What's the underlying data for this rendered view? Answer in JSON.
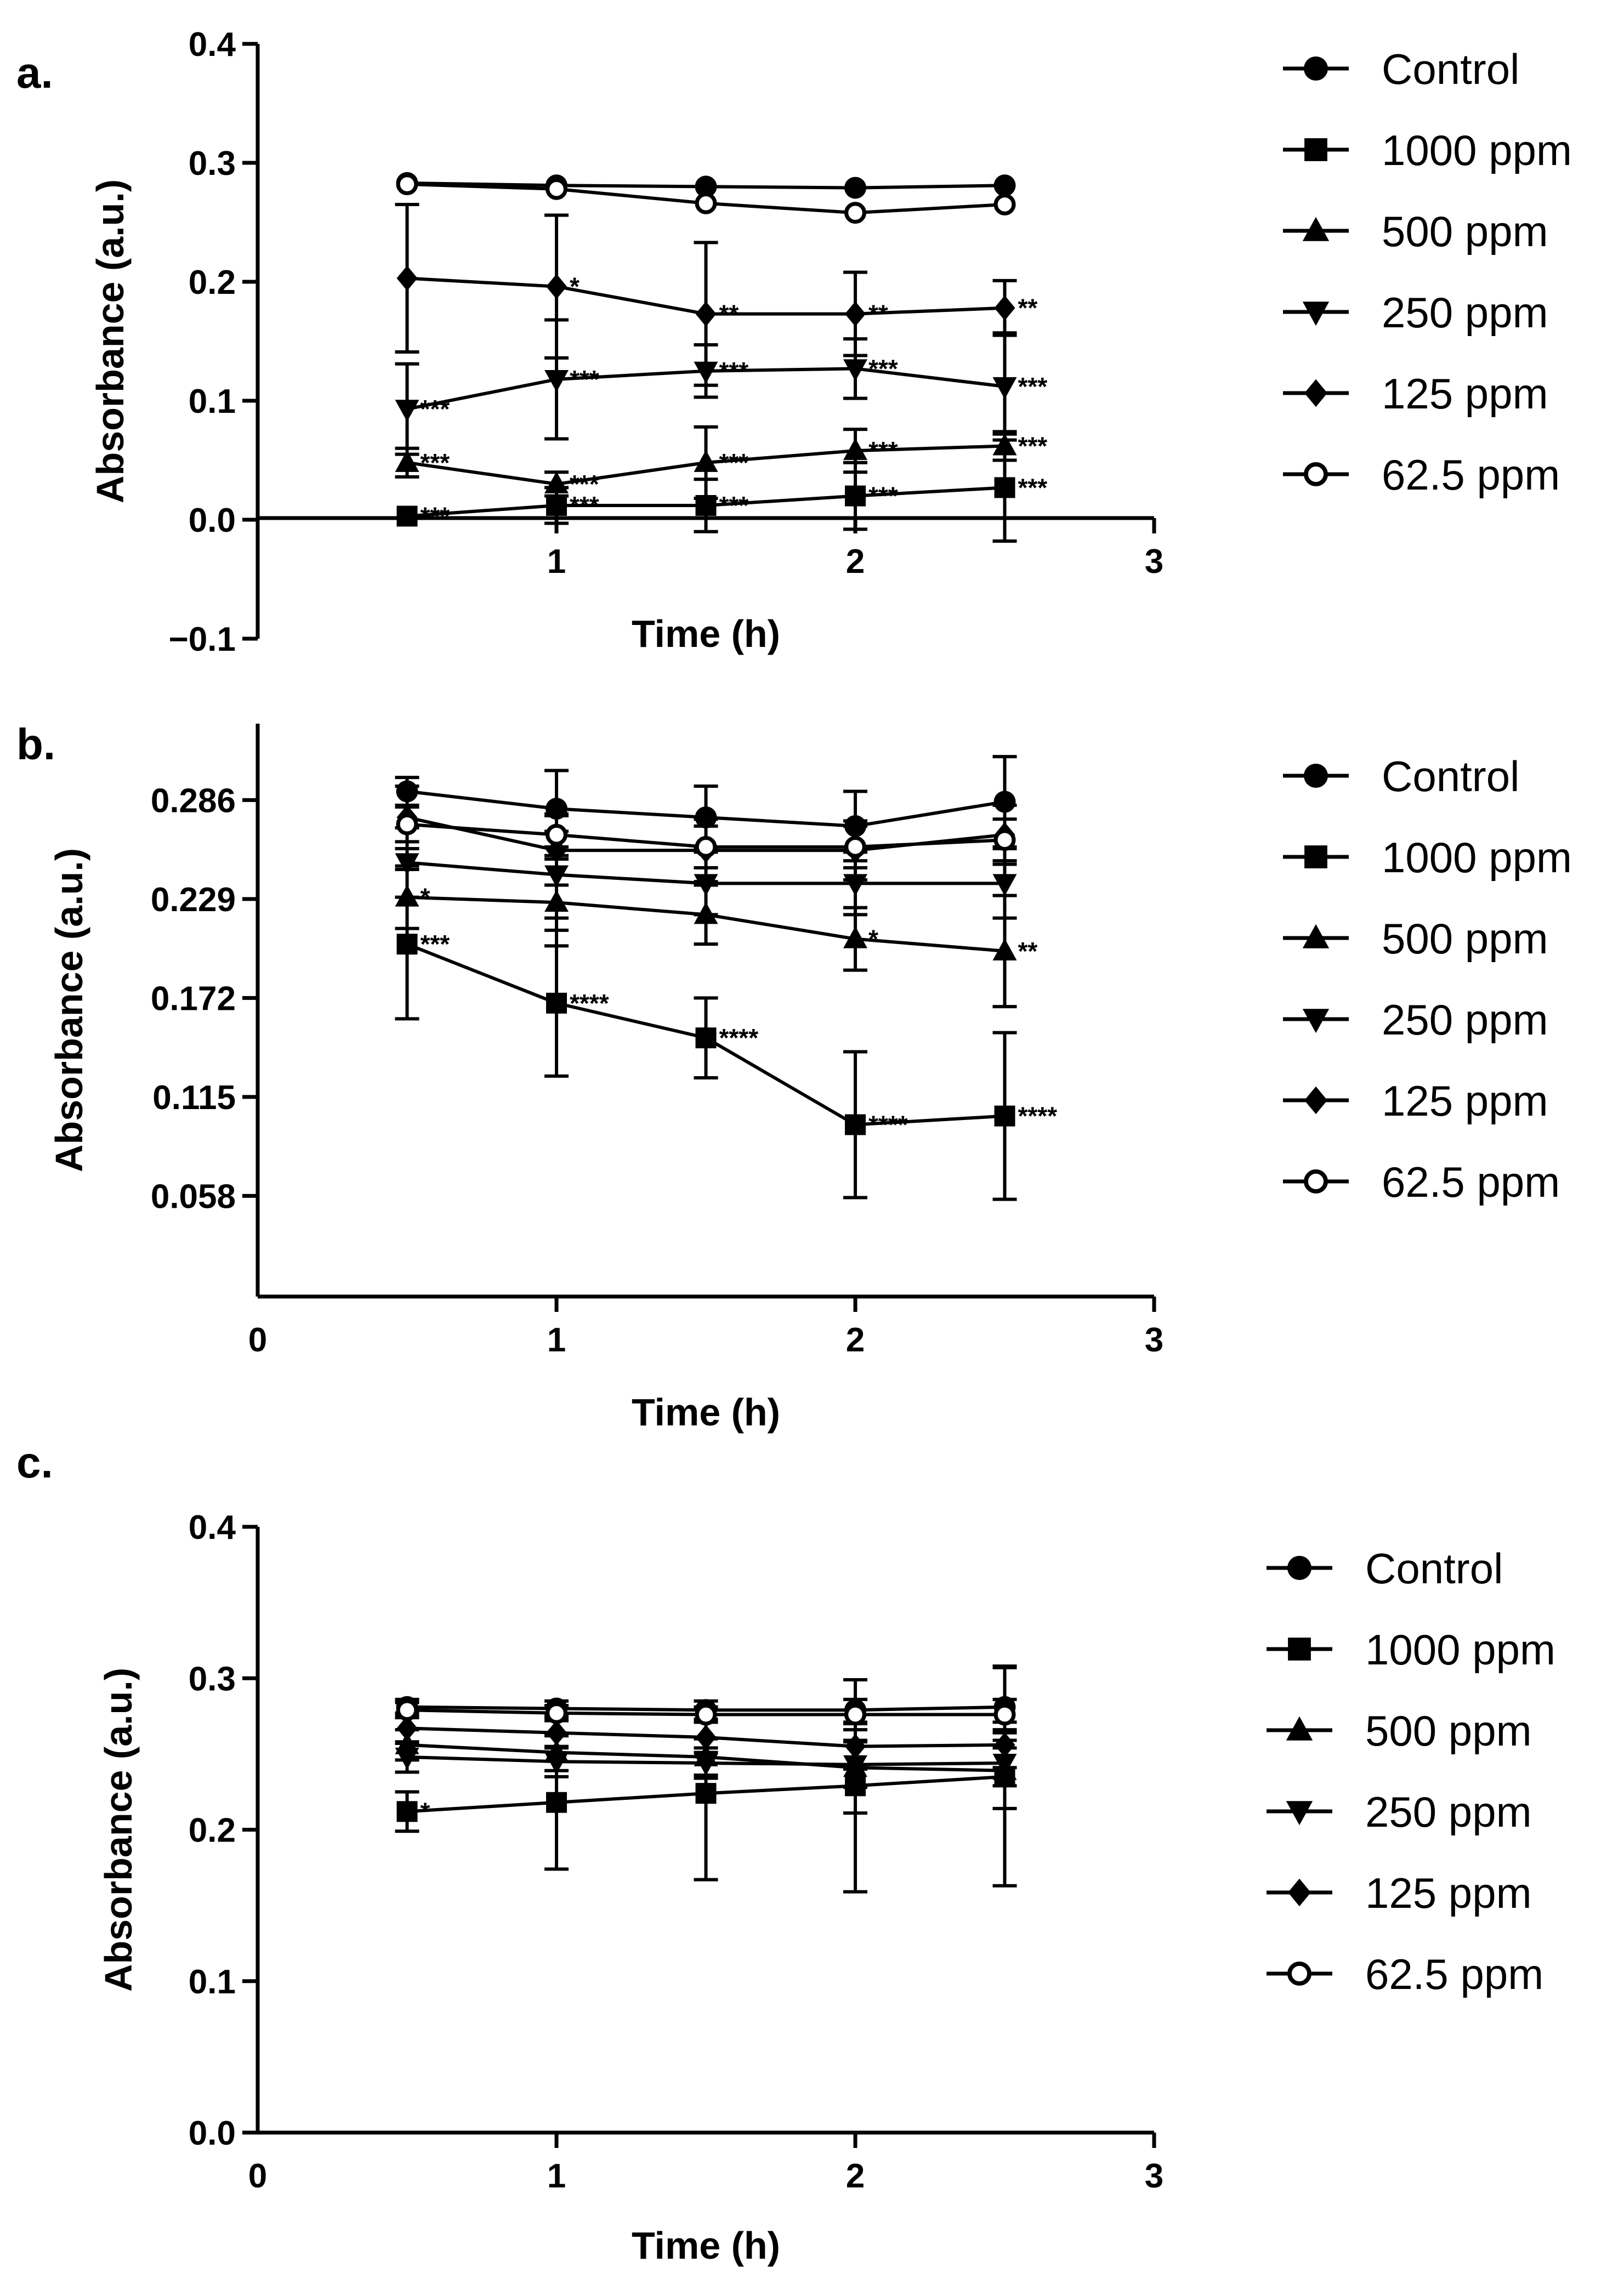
{
  "chart_data": [
    {
      "type": "line",
      "panel_label": "a.",
      "xlabel": "Time (h)",
      "ylabel": "Absorbance (a.u.)",
      "xlim": [
        0,
        3
      ],
      "ylim": [
        -0.1,
        0.4
      ],
      "xticks": [
        {
          "value": 1,
          "label": "1"
        },
        {
          "value": 2,
          "label": "2"
        },
        {
          "value": 3,
          "label": "3"
        }
      ],
      "yticks": [
        {
          "value": -0.1,
          "label": "−0.1"
        },
        {
          "value": 0.0,
          "label": "0.0"
        },
        {
          "value": 0.1,
          "label": "0.1"
        },
        {
          "value": 0.2,
          "label": "0.2"
        },
        {
          "value": 0.3,
          "label": "0.3"
        },
        {
          "value": 0.4,
          "label": "0.4"
        }
      ],
      "x": [
        0.5,
        1.0,
        1.5,
        2.0,
        2.5
      ],
      "series": [
        {
          "name": "Control",
          "marker": "circle",
          "values": [
            0.283,
            0.281,
            0.28,
            0.279,
            0.281
          ],
          "errors": [
            0,
            0,
            0,
            0,
            0
          ],
          "stars": [
            "",
            "",
            "",
            "",
            ""
          ]
        },
        {
          "name": "1000 ppm",
          "marker": "square",
          "values": [
            0.003,
            0.012,
            0.012,
            0.02,
            0.027
          ],
          "errors": [
            0,
            0.015,
            0.022,
            0.028,
            0.045
          ],
          "stars": [
            "***",
            "***",
            "***",
            "***",
            "***"
          ]
        },
        {
          "name": "500 ppm",
          "marker": "triangle-up",
          "values": [
            0.048,
            0.03,
            0.048,
            0.058,
            0.062
          ],
          "errors": [
            0.012,
            0.01,
            0.03,
            0.018,
            0.012
          ],
          "stars": [
            "***",
            "***",
            "***",
            "***",
            "***"
          ]
        },
        {
          "name": "250 ppm",
          "marker": "triangle-down",
          "values": [
            0.093,
            0.118,
            0.125,
            0.127,
            0.112
          ],
          "errors": [
            0.038,
            0.05,
            0.022,
            0.025,
            0.045
          ],
          "stars": [
            "***",
            "***",
            "***",
            "***",
            "***"
          ]
        },
        {
          "name": "125 ppm",
          "marker": "diamond",
          "values": [
            0.203,
            0.196,
            0.173,
            0.173,
            0.178
          ],
          "errors": [
            0.062,
            0.06,
            0.06,
            0.035,
            0.023
          ],
          "stars": [
            "",
            "*",
            "**",
            "**",
            "**"
          ]
        },
        {
          "name": "62.5 ppm",
          "marker": "circle-open",
          "values": [
            0.282,
            0.278,
            0.266,
            0.258,
            0.265
          ],
          "errors": [
            0,
            0,
            0,
            0,
            0
          ],
          "stars": [
            "",
            "",
            "",
            "",
            ""
          ]
        }
      ]
    },
    {
      "type": "line",
      "panel_label": "b.",
      "xlabel": "Time (h)",
      "ylabel": "Absorbance (a.u.)",
      "xlim": [
        0,
        3
      ],
      "ylim": [
        0,
        0.33
      ],
      "xticks": [
        {
          "value": 0,
          "label": "0"
        },
        {
          "value": 1,
          "label": "1"
        },
        {
          "value": 2,
          "label": "2"
        },
        {
          "value": 3,
          "label": "3"
        }
      ],
      "yticks": [
        {
          "value": 0.058,
          "label": "0.058"
        },
        {
          "value": 0.115,
          "label": "0.115"
        },
        {
          "value": 0.172,
          "label": "0.172"
        },
        {
          "value": 0.229,
          "label": "0.229"
        },
        {
          "value": 0.286,
          "label": "0.286"
        }
      ],
      "x": [
        0.5,
        1.0,
        1.5,
        2.0,
        2.5
      ],
      "series": [
        {
          "name": "Control",
          "marker": "circle",
          "values": [
            0.291,
            0.281,
            0.276,
            0.271,
            0.285
          ],
          "errors": [
            0.008,
            0.022,
            0.018,
            0.02,
            0.026
          ],
          "stars": [
            "",
            "",
            "",
            "",
            ""
          ]
        },
        {
          "name": "1000 ppm",
          "marker": "square",
          "values": [
            0.203,
            0.169,
            0.149,
            0.099,
            0.104
          ],
          "errors": [
            0.043,
            0.042,
            0.023,
            0.042,
            0.048
          ],
          "stars": [
            "***",
            "****",
            "****",
            "****",
            "****"
          ]
        },
        {
          "name": "500 ppm",
          "marker": "triangle-up",
          "values": [
            0.23,
            0.227,
            0.22,
            0.206,
            0.199
          ],
          "errors": [
            0.018,
            0.025,
            0.017,
            0.018,
            0.032
          ],
          "stars": [
            "*",
            "",
            "",
            "*",
            "**"
          ]
        },
        {
          "name": "250 ppm",
          "marker": "triangle-down",
          "values": [
            0.25,
            0.243,
            0.238,
            0.238,
            0.238
          ],
          "errors": [
            0.02,
            0.025,
            0.018,
            0.018,
            0.02
          ],
          "stars": [
            "",
            "",
            "",
            "",
            ""
          ]
        },
        {
          "name": "125 ppm",
          "marker": "diamond",
          "values": [
            0.276,
            0.257,
            0.257,
            0.257,
            0.266
          ],
          "errors": [
            0.018,
            0.02,
            0.018,
            0.017,
            0.017
          ],
          "stars": [
            "",
            "",
            "",
            "",
            ""
          ]
        },
        {
          "name": "62.5 ppm",
          "marker": "circle-open",
          "values": [
            0.272,
            0.266,
            0.259,
            0.259,
            0.263
          ],
          "errors": [
            0.01,
            0.012,
            0.012,
            0.012,
            0.012
          ],
          "stars": [
            "",
            "",
            "",
            "",
            ""
          ]
        }
      ]
    },
    {
      "type": "line",
      "panel_label": "c.",
      "xlabel": "Time (h)",
      "ylabel": "Absorbance (a.u.)",
      "xlim": [
        0,
        3
      ],
      "ylim": [
        0,
        0.4
      ],
      "xticks": [
        {
          "value": 0,
          "label": "0"
        },
        {
          "value": 1,
          "label": "1"
        },
        {
          "value": 2,
          "label": "2"
        },
        {
          "value": 3,
          "label": "3"
        }
      ],
      "yticks": [
        {
          "value": 0.0,
          "label": "0.0"
        },
        {
          "value": 0.1,
          "label": "0.1"
        },
        {
          "value": 0.2,
          "label": "0.2"
        },
        {
          "value": 0.3,
          "label": "0.3"
        },
        {
          "value": 0.4,
          "label": "0.4"
        }
      ],
      "x": [
        0.5,
        1.0,
        1.5,
        2.0,
        2.5
      ],
      "series": [
        {
          "name": "Control",
          "marker": "circle",
          "values": [
            0.281,
            0.28,
            0.279,
            0.279,
            0.281
          ],
          "errors": [
            0.005,
            0.005,
            0.006,
            0.02,
            0.027
          ],
          "stars": [
            "",
            "",
            "",
            "",
            ""
          ]
        },
        {
          "name": "1000 ppm",
          "marker": "square",
          "values": [
            0.212,
            0.218,
            0.224,
            0.229,
            0.235
          ],
          "errors": [
            0.013,
            0.044,
            0.057,
            0.07,
            0.072
          ],
          "stars": [
            "*",
            "",
            "",
            "",
            ""
          ]
        },
        {
          "name": "500 ppm",
          "marker": "triangle-up",
          "values": [
            0.256,
            0.251,
            0.248,
            0.241,
            0.239
          ],
          "errors": [
            0.01,
            0.012,
            0.012,
            0.03,
            0.025
          ],
          "stars": [
            "",
            "",
            "",
            "",
            ""
          ]
        },
        {
          "name": "250 ppm",
          "marker": "triangle-down",
          "values": [
            0.248,
            0.245,
            0.244,
            0.243,
            0.244
          ],
          "errors": [
            0.01,
            0.01,
            0.01,
            0.015,
            0.015
          ],
          "stars": [
            "",
            "",
            "",
            "",
            ""
          ]
        },
        {
          "name": "125 ppm",
          "marker": "diamond",
          "values": [
            0.267,
            0.264,
            0.261,
            0.255,
            0.256
          ],
          "errors": [
            0.01,
            0.01,
            0.01,
            0.015,
            0.015
          ],
          "stars": [
            "",
            "",
            "",
            "",
            ""
          ]
        },
        {
          "name": "62.5 ppm",
          "marker": "circle-open",
          "values": [
            0.279,
            0.277,
            0.276,
            0.276,
            0.276
          ],
          "errors": [
            0.005,
            0.005,
            0.005,
            0.01,
            0.01
          ],
          "stars": [
            "",
            "",
            "",
            "",
            ""
          ]
        }
      ]
    }
  ]
}
